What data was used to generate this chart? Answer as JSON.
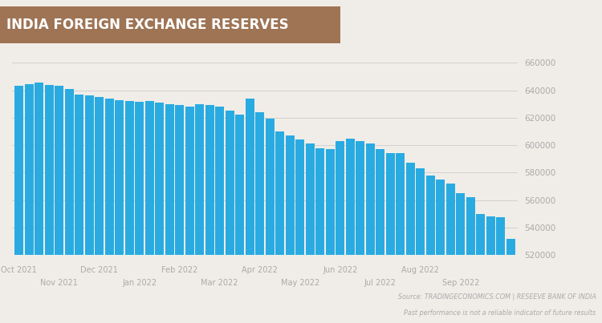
{
  "title": "INDIA FOREIGN EXCHANGE RESERVES",
  "title_bg_color": "#9E7455",
  "title_text_color": "#FFFFFF",
  "bar_color": "#29ABE2",
  "bg_color": "#F0EDE8",
  "chart_bg_color": "#F0EDE8",
  "grid_color": "#CCCCCC",
  "ytick_color": "#AAAAAA",
  "xtick_color": "#AAAAAA",
  "source_text": "Source: TRADINGECONOMICS.COM | RESEEVE BANK OF INDIA",
  "disclaimer_text": "Past performance is not a reliable indicator of future results",
  "ylim": [
    520000,
    668000
  ],
  "yticks": [
    520000,
    540000,
    560000,
    580000,
    600000,
    620000,
    640000,
    660000
  ],
  "top_positions": [
    0,
    8,
    16,
    24,
    32,
    40
  ],
  "top_labels": [
    "Oct 2021",
    "Dec 2021",
    "Feb 2022",
    "Apr 2022",
    "Jun 2022",
    "Aug 2022"
  ],
  "bot_positions": [
    4,
    12,
    20,
    28,
    36,
    44
  ],
  "bot_labels": [
    "Nov 2021",
    "Jan 2022",
    "Mar 2022",
    "May 2022",
    "Jul 2022",
    "Sep 2022"
  ],
  "values": [
    643000,
    644500,
    645500,
    644000,
    643000,
    641000,
    637000,
    636000,
    635000,
    634000,
    633000,
    632000,
    631500,
    632000,
    631000,
    630000,
    629000,
    628000,
    630000,
    629500,
    628000,
    625000,
    622000,
    634000,
    624000,
    619500,
    610000,
    607000,
    604000,
    601000,
    597500,
    597000,
    603000,
    604500,
    603000,
    601000,
    597000,
    594000,
    594500,
    587000,
    583000,
    578000,
    575000,
    572000,
    565000,
    562000,
    550000,
    548000,
    547500,
    532000
  ]
}
